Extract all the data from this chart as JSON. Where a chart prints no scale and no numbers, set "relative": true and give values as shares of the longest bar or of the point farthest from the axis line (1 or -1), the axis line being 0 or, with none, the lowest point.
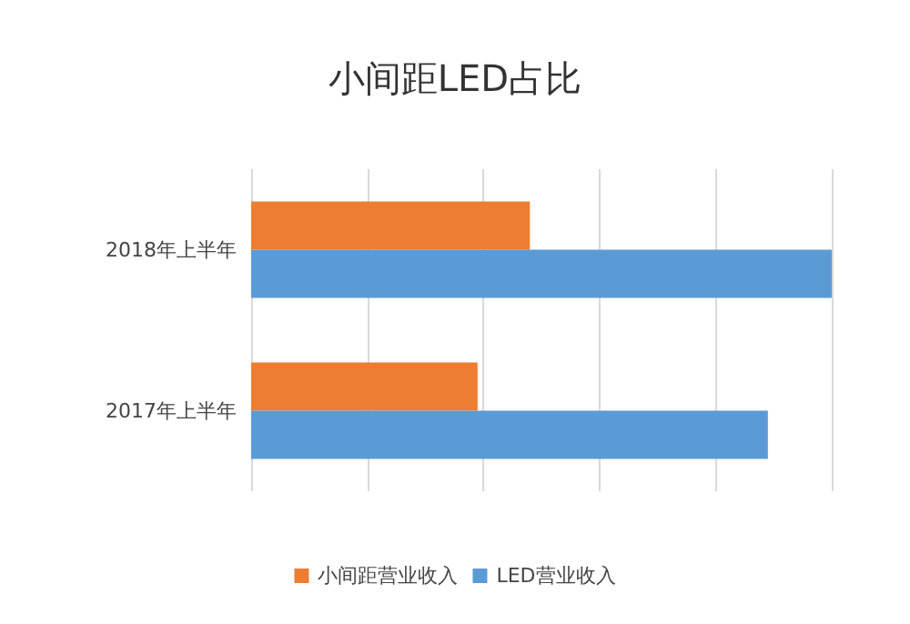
{
  "chart_data": {
    "type": "bar",
    "title": "小间距LED占比",
    "orientation": "horizontal",
    "relative": true,
    "categories": [
      "2018年上半年",
      "2017年上半年"
    ],
    "series": [
      {
        "name": "小间距营业收入",
        "color": "#ed7d31",
        "values": [
          0.48,
          0.39
        ]
      },
      {
        "name": "LED营业收入",
        "color": "#5b9bd5",
        "values": [
          1,
          0.89
        ]
      }
    ],
    "grid": "x",
    "legend": "bottom"
  }
}
